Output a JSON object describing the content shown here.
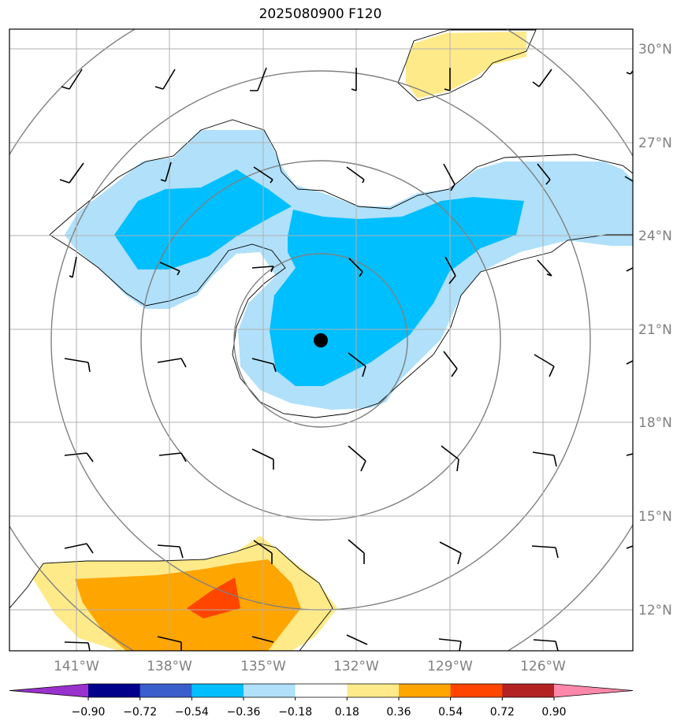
{
  "title": "2025080900 F120",
  "map": {
    "lat_labels": [
      "30°N",
      "27°N",
      "24°N",
      "21°N",
      "18°N",
      "15°N",
      "12°N"
    ],
    "lon_labels": [
      "141°W",
      "138°W",
      "135°W",
      "132°W",
      "129°W",
      "126°W"
    ],
    "center_marker": "storm-center"
  },
  "colorbar": {
    "levels": [
      "−0.90",
      "−0.72",
      "−0.54",
      "−0.36",
      "−0.18",
      "0.18",
      "0.36",
      "0.54",
      "0.72",
      "0.90"
    ],
    "colors": [
      "#9932CC",
      "#00008B",
      "#3A5FCD",
      "#00BFFF",
      "#B0E0FA",
      "#FFFFFF",
      "#FFEA8A",
      "#FFA500",
      "#FF4500",
      "#B22222",
      "#FF88AA"
    ]
  },
  "fill_colors": {
    "light_blue": "#B0E0FA",
    "mid_blue": "#00BFFF",
    "yellow": "#FFEA8A",
    "orange": "#FFA500",
    "red_orange": "#FF4500"
  }
}
